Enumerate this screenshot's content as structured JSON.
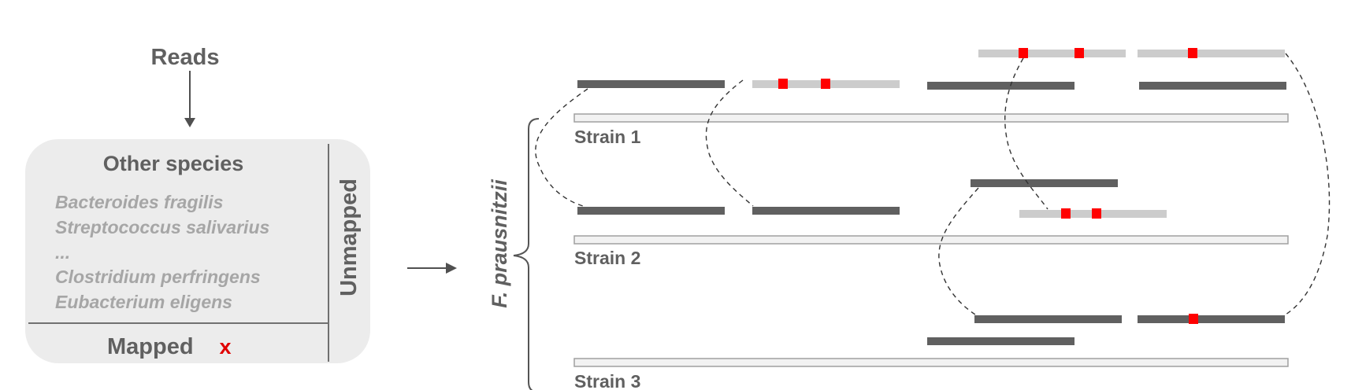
{
  "reads_label": "Reads",
  "box": {
    "title": "Other species",
    "species": [
      "Bacteroides fragilis",
      "Streptococcus salivarius",
      "...",
      "Clostridium perfringens",
      "Eubacterium eligens"
    ],
    "mapped_label": "Mapped",
    "mapped_mark": "x",
    "unmapped_label": "Unmapped"
  },
  "species_name": "F. prausnitzii",
  "strains": [
    {
      "label": "Strain 1"
    },
    {
      "label": "Strain 2"
    },
    {
      "label": "Strain 3"
    }
  ],
  "colors": {
    "read_mapped": "#606060",
    "read_unmapped": "#cccccc",
    "mismatch": "#ff0000",
    "genome_fill": "#f2f2f2",
    "genome_stroke": "#a0a0a0",
    "box_fill": "#ececec",
    "label": "#606060",
    "species_text": "#a6a6a6",
    "mapped_mark": "#e00000"
  }
}
